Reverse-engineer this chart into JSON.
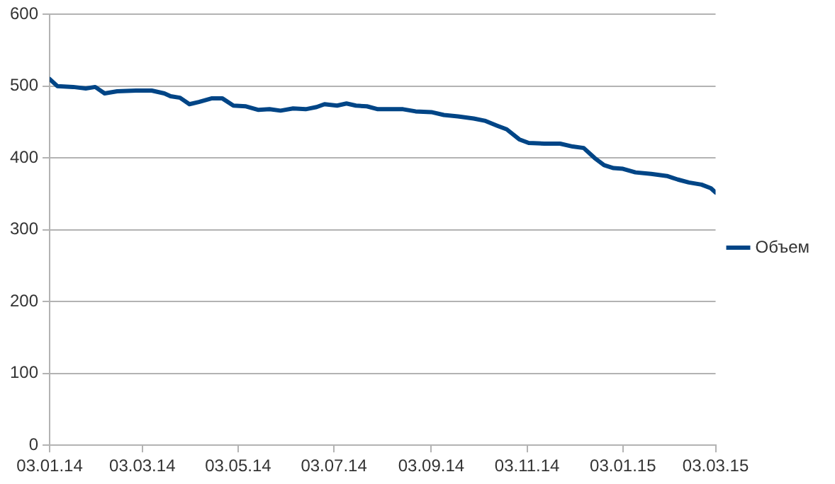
{
  "chart_data": {
    "type": "line",
    "x": [
      "2014-01-03",
      "2014-01-08",
      "2014-01-18",
      "2014-01-26",
      "2014-02-01",
      "2014-02-07",
      "2014-02-15",
      "2014-02-27",
      "2014-03-09",
      "2014-03-17",
      "2014-03-21",
      "2014-03-27",
      "2014-04-02",
      "2014-04-08",
      "2014-04-16",
      "2014-04-23",
      "2014-04-30",
      "2014-05-08",
      "2014-05-16",
      "2014-05-23",
      "2014-05-30",
      "2014-06-07",
      "2014-06-15",
      "2014-06-22",
      "2014-06-27",
      "2014-07-05",
      "2014-07-11",
      "2014-07-17",
      "2014-07-24",
      "2014-07-31",
      "2014-08-08",
      "2014-08-16",
      "2014-08-24",
      "2014-09-03",
      "2014-09-11",
      "2014-09-20",
      "2014-09-30",
      "2014-10-07",
      "2014-10-15",
      "2014-10-21",
      "2014-10-29",
      "2014-11-04",
      "2014-11-14",
      "2014-11-24",
      "2014-12-02",
      "2014-12-09",
      "2014-12-16",
      "2014-12-22",
      "2014-12-28",
      "2015-01-03",
      "2015-01-11",
      "2015-01-21",
      "2015-01-31",
      "2015-02-07",
      "2015-02-14",
      "2015-02-22",
      "2015-02-28",
      "2015-03-03"
    ],
    "series": [
      {
        "name": "Объем",
        "color": "#004586",
        "values": [
          510,
          500,
          499,
          497,
          499,
          490,
          493,
          494,
          494,
          490,
          486,
          484,
          475,
          478,
          483,
          483,
          473,
          472,
          467,
          468,
          466,
          469,
          468,
          471,
          475,
          473,
          476,
          473,
          472,
          468,
          468,
          468,
          465,
          464,
          460,
          458,
          455,
          452,
          445,
          440,
          426,
          421,
          420,
          420,
          416,
          414,
          400,
          390,
          386,
          385,
          380,
          378,
          375,
          370,
          366,
          363,
          358,
          352
        ]
      }
    ],
    "xlim": [
      "2014-01-03",
      "2015-03-03"
    ],
    "xticks": [
      {
        "value": "2014-01-03",
        "label": "03.01.14"
      },
      {
        "value": "2014-03-03",
        "label": "03.03.14"
      },
      {
        "value": "2014-05-03",
        "label": "03.05.14"
      },
      {
        "value": "2014-07-03",
        "label": "03.07.14"
      },
      {
        "value": "2014-09-03",
        "label": "03.09.14"
      },
      {
        "value": "2014-11-03",
        "label": "03.11.14"
      },
      {
        "value": "2015-01-03",
        "label": "03.01.15"
      },
      {
        "value": "2015-03-03",
        "label": "03.03.15"
      }
    ],
    "ylim": [
      0,
      600
    ],
    "yticks": [
      0,
      100,
      200,
      300,
      400,
      500,
      600
    ],
    "grid": "y",
    "legend": "right",
    "marker": "none",
    "line_style": "solid"
  }
}
